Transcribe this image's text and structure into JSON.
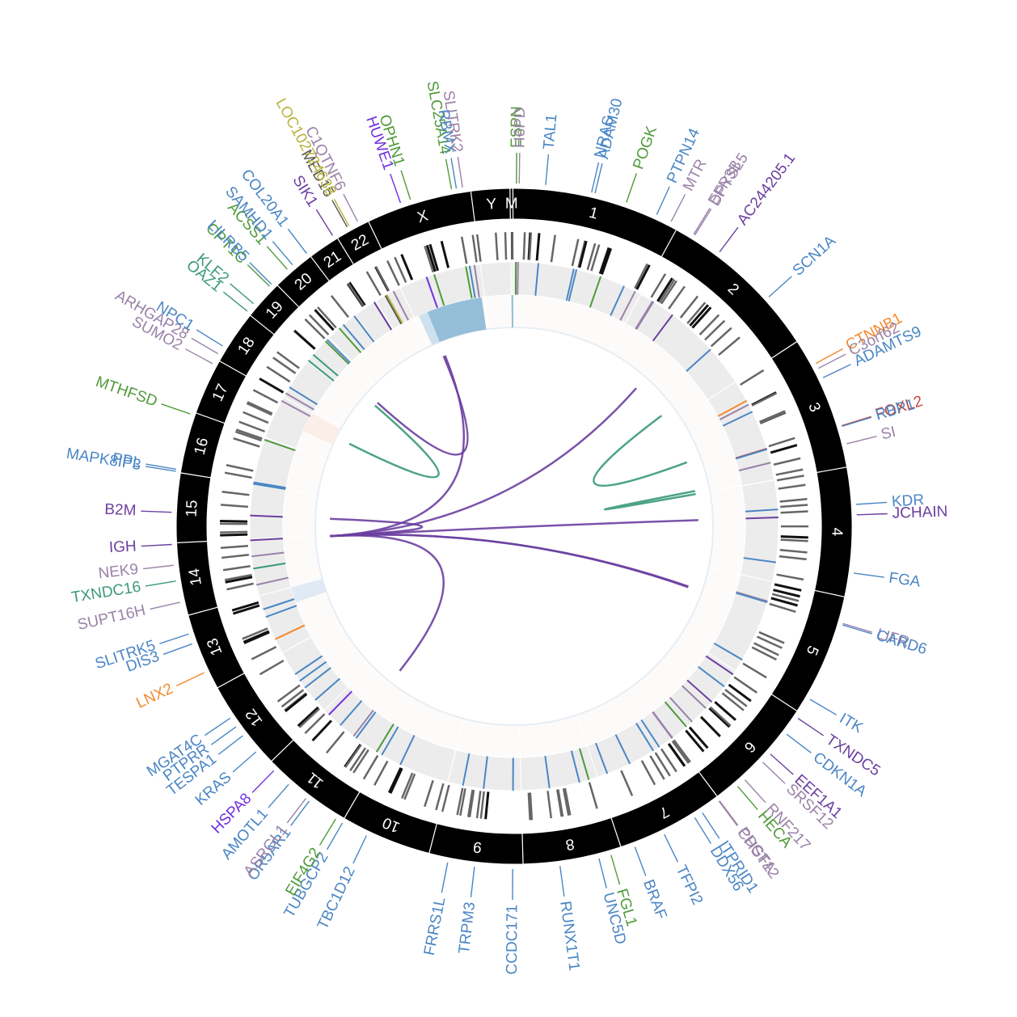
{
  "chromosomes": [
    {
      "name": "1",
      "len": 248
    },
    {
      "name": "2",
      "len": 242
    },
    {
      "name": "3",
      "len": 198
    },
    {
      "name": "4",
      "len": 190
    },
    {
      "name": "5",
      "len": 181
    },
    {
      "name": "6",
      "len": 171
    },
    {
      "name": "7",
      "len": 159
    },
    {
      "name": "8",
      "len": 145
    },
    {
      "name": "9",
      "len": 138
    },
    {
      "name": "10",
      "len": 134
    },
    {
      "name": "11",
      "len": 135
    },
    {
      "name": "12",
      "len": 133
    },
    {
      "name": "13",
      "len": 114
    },
    {
      "name": "14",
      "len": 107
    },
    {
      "name": "15",
      "len": 102
    },
    {
      "name": "16",
      "len": 90
    },
    {
      "name": "17",
      "len": 83
    },
    {
      "name": "18",
      "len": 80
    },
    {
      "name": "19",
      "len": 59
    },
    {
      "name": "20",
      "len": 64
    },
    {
      "name": "21",
      "len": 47
    },
    {
      "name": "22",
      "len": 51
    },
    {
      "name": "X",
      "len": 156
    },
    {
      "name": "Y",
      "len": 57
    },
    {
      "name": "M",
      "len": 4
    }
  ],
  "colors": {
    "blue": "#4a86c5",
    "purple": "#6b3fa0",
    "mauve": "#9a82a8",
    "green": "#4f9a3a",
    "orange": "#f28a2e",
    "red": "#c8423a",
    "teal": "#3a9a78",
    "olive": "#b8b43a",
    "violet": "#7030e0",
    "gray": "#555555"
  },
  "genes": [
    {
      "name": "ESPN",
      "chrom": "1",
      "pos": 5,
      "color": "green"
    },
    {
      "name": "H6PD",
      "chrom": "1",
      "pos": 9,
      "color": "mauve"
    },
    {
      "name": "TAL1",
      "chrom": "1",
      "pos": 47,
      "color": "blue"
    },
    {
      "name": "NRAS",
      "chrom": "1",
      "pos": 114,
      "color": "blue"
    },
    {
      "name": "ADAM30",
      "chrom": "1",
      "pos": 119,
      "color": "blue"
    },
    {
      "name": "POGK",
      "chrom": "1",
      "pos": 166,
      "color": "green"
    },
    {
      "name": "PTPN14",
      "chrom": "1",
      "pos": 213,
      "color": "blue"
    },
    {
      "name": "MTR",
      "chrom": "1",
      "pos": 236,
      "color": "mauve"
    },
    {
      "name": "EFR3B",
      "chrom": "2",
      "pos": 25,
      "color": "mauve"
    },
    {
      "name": "DPYSL5",
      "chrom": "2",
      "pos": 27,
      "color": "mauve"
    },
    {
      "name": "AC244205.1",
      "chrom": "2",
      "pos": 70,
      "color": "purple"
    },
    {
      "name": "SCN1A",
      "chrom": "2",
      "pos": 166,
      "color": "blue"
    },
    {
      "name": "CTNNB1",
      "chrom": "3",
      "pos": 41,
      "color": "orange"
    },
    {
      "name": "C3orf62",
      "chrom": "3",
      "pos": 49,
      "color": "mauve"
    },
    {
      "name": "ADAMTS9",
      "chrom": "3",
      "pos": 64,
      "color": "blue"
    },
    {
      "name": "FOXL2",
      "chrom": "3",
      "pos": 138,
      "color": "red"
    },
    {
      "name": "RBP1",
      "chrom": "3",
      "pos": 139,
      "color": "blue"
    },
    {
      "name": "SI",
      "chrom": "3",
      "pos": 165,
      "color": "mauve"
    },
    {
      "name": "KDR",
      "chrom": "4",
      "pos": 55,
      "color": "blue"
    },
    {
      "name": "JCHAIN",
      "chrom": "4",
      "pos": 70,
      "color": "purple"
    },
    {
      "name": "FGA",
      "chrom": "4",
      "pos": 154,
      "color": "blue"
    },
    {
      "name": "LIFR",
      "chrom": "5",
      "pos": 38,
      "color": "mauve"
    },
    {
      "name": "CARD6",
      "chrom": "5",
      "pos": 40,
      "color": "blue"
    },
    {
      "name": "ITK",
      "chrom": "5",
      "pos": 157,
      "color": "blue"
    },
    {
      "name": "TXNDC5",
      "chrom": "6",
      "pos": 8,
      "color": "purple"
    },
    {
      "name": "CDKN1A",
      "chrom": "6",
      "pos": 36,
      "color": "blue"
    },
    {
      "name": "EEF1A1",
      "chrom": "6",
      "pos": 73,
      "color": "purple"
    },
    {
      "name": "SRSF12",
      "chrom": "6",
      "pos": 89,
      "color": "mauve"
    },
    {
      "name": "RNF217",
      "chrom": "6",
      "pos": 125,
      "color": "mauve"
    },
    {
      "name": "HECA",
      "chrom": "6",
      "pos": 139,
      "color": "green"
    },
    {
      "name": "CHST12",
      "chrom": "7",
      "pos": 2,
      "color": "mauve"
    },
    {
      "name": "PDGFA",
      "chrom": "7",
      "pos": 1,
      "color": "mauve"
    },
    {
      "name": "ITPRID1",
      "chrom": "7",
      "pos": 31,
      "color": "blue"
    },
    {
      "name": "DDX56",
      "chrom": "7",
      "pos": 44,
      "color": "blue"
    },
    {
      "name": "TFPI2",
      "chrom": "7",
      "pos": 94,
      "color": "blue"
    },
    {
      "name": "BRAF",
      "chrom": "7",
      "pos": 140,
      "color": "blue"
    },
    {
      "name": "FGL1",
      "chrom": "8",
      "pos": 17,
      "color": "green"
    },
    {
      "name": "UNC5D",
      "chrom": "8",
      "pos": 35,
      "color": "blue"
    },
    {
      "name": "RUNX1T1",
      "chrom": "8",
      "pos": 92,
      "color": "blue"
    },
    {
      "name": "CCDC171",
      "chrom": "9",
      "pos": 15,
      "color": "blue"
    },
    {
      "name": "TRPM3",
      "chrom": "9",
      "pos": 70,
      "color": "blue"
    },
    {
      "name": "FRRS1L",
      "chrom": "9",
      "pos": 109,
      "color": "blue"
    },
    {
      "name": "TBC1D12",
      "chrom": "10",
      "pos": 94,
      "color": "blue"
    },
    {
      "name": "TUBGCP2",
      "chrom": "10",
      "pos": 133,
      "color": "blue"
    },
    {
      "name": "EIF4G2",
      "chrom": "11",
      "pos": 10,
      "color": "green"
    },
    {
      "name": "OR5AR1",
      "chrom": "11",
      "pos": 56,
      "color": "blue"
    },
    {
      "name": "ASRGL1",
      "chrom": "11",
      "pos": 62,
      "color": "mauve"
    },
    {
      "name": "AMOTL1",
      "chrom": "11",
      "pos": 94,
      "color": "blue"
    },
    {
      "name": "HSPA8",
      "chrom": "11",
      "pos": 123,
      "color": "violet"
    },
    {
      "name": "KRAS",
      "chrom": "12",
      "pos": 25,
      "color": "blue"
    },
    {
      "name": "TESPA1",
      "chrom": "12",
      "pos": 55,
      "color": "blue"
    },
    {
      "name": "PTPRR",
      "chrom": "12",
      "pos": 71,
      "color": "blue"
    },
    {
      "name": "MGAT4C",
      "chrom": "12",
      "pos": 86,
      "color": "blue"
    },
    {
      "name": "LNX2",
      "chrom": "13",
      "pos": 28,
      "color": "orange"
    },
    {
      "name": "DIS3",
      "chrom": "13",
      "pos": 73,
      "color": "blue"
    },
    {
      "name": "SLITRK5",
      "chrom": "13",
      "pos": 88,
      "color": "blue"
    },
    {
      "name": "SUPT16H",
      "chrom": "14",
      "pos": 21,
      "color": "mauve"
    },
    {
      "name": "TXNDC16",
      "chrom": "14",
      "pos": 52,
      "color": "teal"
    },
    {
      "name": "NEK9",
      "chrom": "14",
      "pos": 75,
      "color": "mauve"
    },
    {
      "name": "IGH",
      "chrom": "14",
      "pos": 105,
      "color": "purple"
    },
    {
      "name": "B2M",
      "chrom": "15",
      "pos": 44,
      "color": "purple"
    },
    {
      "name": "MAPK8IP3",
      "chrom": "16",
      "pos": 1,
      "color": "blue"
    },
    {
      "name": "PPL",
      "chrom": "16",
      "pos": 4,
      "color": "blue"
    },
    {
      "name": "MTHFSD",
      "chrom": "16",
      "pos": 86,
      "color": "green"
    },
    {
      "name": "SUMO2",
      "chrom": "17",
      "pos": 75,
      "color": "mauve"
    },
    {
      "name": "ARHGAP28",
      "chrom": "18",
      "pos": 8,
      "color": "mauve"
    },
    {
      "name": "NPC1",
      "chrom": "18",
      "pos": 21,
      "color": "blue"
    },
    {
      "name": "OAZ1",
      "chrom": "19",
      "pos": 2,
      "color": "teal"
    },
    {
      "name": "KLF2",
      "chrom": "19",
      "pos": 16,
      "color": "teal"
    },
    {
      "name": "CPT1C",
      "chrom": "19",
      "pos": 50,
      "color": "green"
    },
    {
      "name": "LILRB5",
      "chrom": "19",
      "pos": 54,
      "color": "blue"
    },
    {
      "name": "ACSS1",
      "chrom": "20",
      "pos": 26,
      "color": "green"
    },
    {
      "name": "SAMHD1",
      "chrom": "20",
      "pos": 36,
      "color": "blue"
    },
    {
      "name": "COL20A1",
      "chrom": "20",
      "pos": 62,
      "color": "blue"
    },
    {
      "name": "SIK1",
      "chrom": "21",
      "pos": 43,
      "color": "purple"
    },
    {
      "name": "MED15",
      "chrom": "22",
      "pos": 20,
      "color": "gray"
    },
    {
      "name": "LOC102724638",
      "chrom": "22",
      "pos": 23,
      "color": "olive"
    },
    {
      "name": "C1QTNF6",
      "chrom": "22",
      "pos": 37,
      "color": "mauve"
    },
    {
      "name": "HUWE1",
      "chrom": "X",
      "pos": 53,
      "color": "violet"
    },
    {
      "name": "OPHN1",
      "chrom": "X",
      "pos": 68,
      "color": "green"
    },
    {
      "name": "SLC25A14",
      "chrom": "X",
      "pos": 129,
      "color": "green"
    },
    {
      "name": "RBMX",
      "chrom": "X",
      "pos": 136,
      "color": "blue"
    },
    {
      "name": "SLITRK2",
      "chrom": "X",
      "pos": 145,
      "color": "mauve"
    }
  ],
  "links": [
    {
      "c1": "14",
      "p1": 105,
      "c2": "4",
      "p2": 70,
      "color": "purple"
    },
    {
      "c1": "14",
      "p1": 105,
      "c2": "2",
      "p2": 110,
      "color": "purple"
    },
    {
      "c1": "14",
      "p1": 105,
      "c2": "5",
      "p2": 60,
      "color": "purple"
    },
    {
      "c1": "14",
      "p1": 105,
      "c2": "5",
      "p2": 62,
      "color": "purple"
    },
    {
      "c1": "14",
      "p1": 105,
      "c2": "X",
      "p2": 30,
      "color": "purple"
    },
    {
      "c1": "14",
      "p1": 105,
      "c2": "11",
      "p2": 70,
      "color": "purple"
    },
    {
      "c1": "14",
      "p1": 105,
      "c2": "15",
      "p2": 44,
      "color": "purple"
    },
    {
      "c1": "19",
      "p1": 30,
      "c2": "X",
      "p2": 26,
      "color": "purple"
    },
    {
      "c1": "3",
      "p1": 110,
      "c2": "2",
      "p2": 210,
      "color": "teal"
    },
    {
      "c1": "4",
      "p1": 0,
      "c2": "3",
      "p2": 190,
      "color": "teal"
    },
    {
      "c1": "17",
      "p1": 60,
      "c2": "19",
      "p2": 20,
      "color": "teal"
    }
  ],
  "heat": [
    {
      "chrom": "X",
      "from": 30,
      "to": 150,
      "color": "#95bed8"
    },
    {
      "chrom": "X",
      "from": 10,
      "to": 30,
      "color": "#cfe1ef"
    },
    {
      "chrom": "13",
      "from": 80,
      "to": 114,
      "color": "#dfeaf5"
    },
    {
      "chrom": "17",
      "from": 40,
      "to": 83,
      "color": "#fbeee8"
    },
    {
      "chrom": "M",
      "from": 0,
      "to": 4,
      "color": "#95bed8"
    }
  ]
}
